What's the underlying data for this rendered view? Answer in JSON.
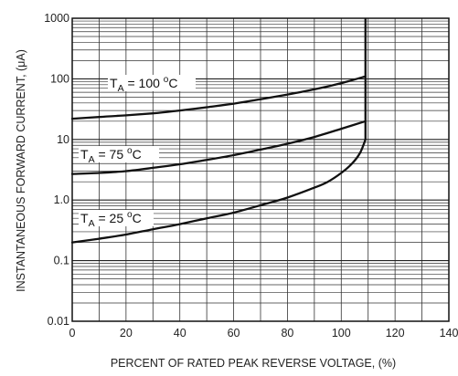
{
  "chart_data": {
    "type": "line",
    "title": "",
    "xlabel": "PERCENT OF RATED PEAK REVERSE VOLTAGE, (%)",
    "ylabel": "INSTANTANEOUS FORWARD CURRENT, (μA)",
    "x_scale": "linear",
    "y_scale": "log",
    "xlim": [
      0,
      140
    ],
    "ylim": [
      0.01,
      1000
    ],
    "x_ticks": [
      "0",
      "20",
      "40",
      "60",
      "80",
      "100",
      "120",
      "140"
    ],
    "y_ticks": [
      "0.01",
      "0.1",
      "1.0",
      "10",
      "100",
      "1000"
    ],
    "grid": {
      "vertical_every": 10,
      "horizontal_minor": [
        2,
        3,
        4,
        5,
        6,
        7,
        8,
        9
      ]
    },
    "series": [
      {
        "temperature": "100",
        "label": {
          "name": "T",
          "sub": "A",
          "eq": " = 100 ",
          "unit": "C"
        },
        "x": [
          0,
          10,
          20,
          30,
          40,
          50,
          60,
          70,
          80,
          90,
          100,
          109
        ],
        "y": [
          22,
          23.5,
          25,
          27,
          30,
          34,
          39,
          46,
          55,
          67,
          85,
          110
        ]
      },
      {
        "temperature": "75",
        "label": {
          "name": "T",
          "sub": "A",
          "eq": " = 75 ",
          "unit": "C"
        },
        "x": [
          0,
          10,
          20,
          30,
          40,
          50,
          60,
          70,
          80,
          90,
          100,
          109
        ],
        "y": [
          2.7,
          2.8,
          3.0,
          3.4,
          3.9,
          4.6,
          5.5,
          6.8,
          8.5,
          11,
          15,
          20
        ]
      },
      {
        "temperature": "25",
        "label": {
          "name": "T",
          "sub": "A",
          "eq": " = 25 ",
          "unit": "C"
        },
        "x": [
          0,
          10,
          20,
          30,
          40,
          50,
          60,
          70,
          80,
          90,
          95,
          100,
          104,
          107,
          109
        ],
        "y": [
          0.2,
          0.23,
          0.27,
          0.33,
          0.4,
          0.5,
          0.62,
          0.82,
          1.1,
          1.6,
          2.0,
          2.8,
          4.0,
          6.0,
          10
        ]
      }
    ],
    "breakdown": {
      "x": 109,
      "y_top": 1000
    }
  }
}
